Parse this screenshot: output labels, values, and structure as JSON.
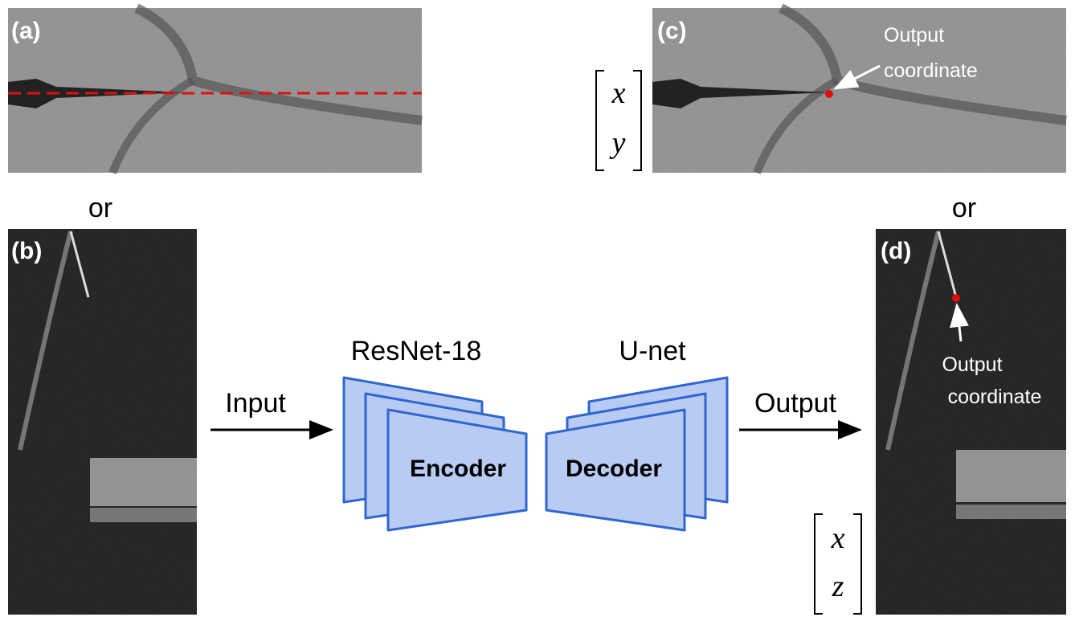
{
  "panels": {
    "a": "(a)",
    "b": "(b)",
    "c": "(c)",
    "d": "(d)"
  },
  "separators": [
    "or",
    "or"
  ],
  "encoder": {
    "title": "ResNet-18",
    "label": "Encoder"
  },
  "decoder": {
    "title": "U-net",
    "label": "Decoder"
  },
  "arrows": {
    "input": "Input",
    "output": "Output"
  },
  "annotations": [
    {
      "lines": [
        "Output",
        "coordinate"
      ]
    },
    {
      "lines": [
        "Output",
        "coordinate"
      ]
    }
  ],
  "vectors": [
    {
      "top": "x",
      "bottom": "y"
    },
    {
      "top": "x",
      "bottom": "z"
    }
  ]
}
